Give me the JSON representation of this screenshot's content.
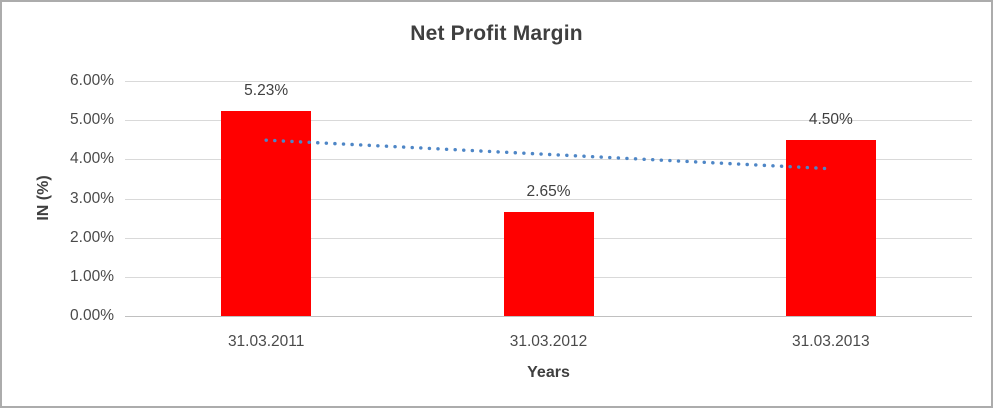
{
  "chart_data": {
    "type": "bar",
    "title": "Net Profit Margin",
    "xlabel": "Years",
    "ylabel": "IN (%)",
    "categories": [
      "31.03.2011",
      "31.03.2012",
      "31.03.2013"
    ],
    "series": [
      {
        "name": "Net Profit Margin",
        "color": "#FF0000",
        "values": [
          5.23,
          2.65,
          4.5
        ]
      }
    ],
    "data_labels": [
      "5.23%",
      "2.65%",
      "4.50%"
    ],
    "ylim": [
      0,
      6
    ],
    "ytick_step": 1,
    "ytick_labels": [
      "0.00%",
      "1.00%",
      "2.00%",
      "3.00%",
      "4.00%",
      "5.00%",
      "6.00%"
    ],
    "grid": true,
    "legend": "none",
    "trendline": {
      "type": "linear",
      "style": "dotted",
      "color": "#4E86C6",
      "start_value": 4.49,
      "end_value": 3.76
    },
    "colors": {
      "bar": "#FF0000",
      "trendline": "#4E86C6",
      "gridline": "#D9D9D9",
      "axis_line": "#C0C0C0",
      "title_text": "#3F3F3F",
      "tick_text": "#4A4A4A",
      "frame_border": "#ACACAC",
      "background": "#FFFFFF"
    }
  }
}
